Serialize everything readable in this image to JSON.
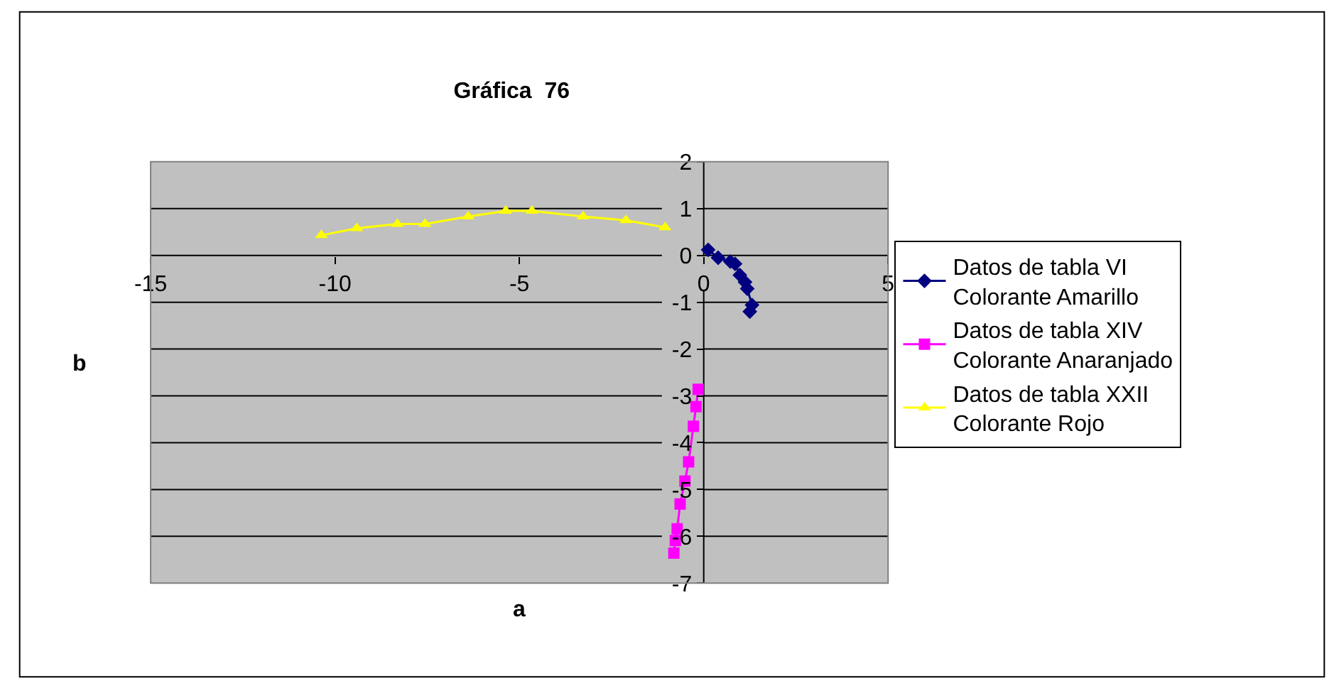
{
  "chart_data": {
    "type": "line",
    "title": "Gráfica  76",
    "xlabel": "a",
    "ylabel": "b",
    "xlim": [
      -15,
      5
    ],
    "xticks": [
      -15,
      -10,
      -5,
      0,
      5
    ],
    "ylim": [
      -7,
      2
    ],
    "yticks": [
      -7,
      -6,
      -5,
      -4,
      -3,
      -2,
      -1,
      0,
      1,
      2
    ],
    "grid": "y",
    "legend": "right",
    "series": [
      {
        "name": "Datos de tabla VI Colorante Amarillo",
        "color": "#000080",
        "marker": "diamond",
        "x": [
          0.12,
          0.39,
          0.72,
          0.85,
          0.98,
          1.12,
          1.18,
          1.31,
          1.25
        ],
        "values": [
          0.12,
          -0.05,
          -0.13,
          -0.18,
          -0.42,
          -0.57,
          -0.71,
          -1.06,
          -1.2
        ]
      },
      {
        "name": "Datos de tabla XIV Colorante Anaranjado",
        "color": "#ff00ff",
        "marker": "square",
        "x": [
          -0.15,
          -0.21,
          -0.28,
          -0.41,
          -0.51,
          -0.64,
          -0.72,
          -0.77,
          -0.81
        ],
        "values": [
          -2.86,
          -3.23,
          -3.65,
          -4.41,
          -4.82,
          -5.31,
          -5.84,
          -6.09,
          -6.36
        ]
      },
      {
        "name": "Datos de tabla XXII Colorante Rojo",
        "color": "#ffff00",
        "marker": "triangle",
        "x": [
          -10.37,
          -9.41,
          -8.31,
          -7.56,
          -6.39,
          -5.37,
          -4.66,
          -3.27,
          -2.11,
          -1.05
        ],
        "values": [
          0.43,
          0.58,
          0.67,
          0.67,
          0.83,
          0.95,
          0.95,
          0.83,
          0.75,
          0.6
        ]
      }
    ]
  }
}
